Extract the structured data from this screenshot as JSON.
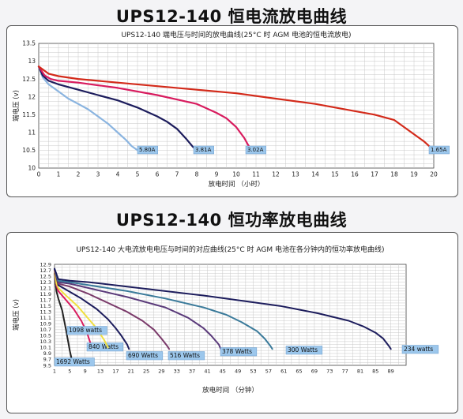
{
  "chart_data": [
    {
      "type": "line",
      "heading": "UPS12-140 恒电流放电曲线",
      "title": "UPS12-140 端电压与时间的放电曲线(25°C 时 AGM 电池的恒电流放电)",
      "xlabel": "放电时间 （小时）",
      "ylabel": "端电压 (v)",
      "xlim": [
        0,
        20
      ],
      "ylim": [
        10,
        13.5
      ],
      "x_ticks": [
        "0",
        "1",
        "2",
        "3",
        "4",
        "5",
        "6",
        "7",
        "8",
        "9",
        "10",
        "11",
        "12",
        "13",
        "14",
        "15",
        "16",
        "17",
        "18",
        "19",
        "20"
      ],
      "y_ticks": [
        "10",
        "10.5",
        "11",
        "11.5",
        "12",
        "12.5",
        "13",
        "13.5"
      ],
      "grid": true,
      "series": [
        {
          "name": "5.80A",
          "color": "#8ab4e0",
          "x": [
            0,
            0.2,
            0.5,
            1,
            1.5,
            2,
            2.5,
            3,
            3.5,
            4,
            4.4,
            4.7,
            5.0
          ],
          "y": [
            12.85,
            12.55,
            12.35,
            12.15,
            11.95,
            11.8,
            11.65,
            11.45,
            11.25,
            11.0,
            10.8,
            10.62,
            10.5
          ]
        },
        {
          "name": "3.81A",
          "color": "#1c1c5c",
          "x": [
            0,
            0.2,
            0.5,
            1,
            2,
            3,
            4,
            5,
            6,
            6.5,
            7,
            7.5,
            7.8,
            8.0
          ],
          "y": [
            12.85,
            12.6,
            12.45,
            12.35,
            12.2,
            12.05,
            11.9,
            11.7,
            11.45,
            11.3,
            11.1,
            10.8,
            10.6,
            10.5
          ]
        },
        {
          "name": "3.02A",
          "color": "#d81b5e",
          "x": [
            0,
            0.3,
            0.6,
            1,
            2,
            4,
            6,
            8,
            9,
            9.5,
            10,
            10.4,
            10.6,
            10.8
          ],
          "y": [
            12.85,
            12.6,
            12.5,
            12.45,
            12.4,
            12.25,
            12.05,
            11.8,
            11.55,
            11.4,
            11.15,
            10.85,
            10.65,
            10.5
          ]
        },
        {
          "name": "1.65A",
          "color": "#d32a1a",
          "x": [
            0,
            0.5,
            1,
            2,
            4,
            6,
            8,
            10,
            12,
            14,
            16,
            17,
            18,
            18.5,
            19,
            19.5,
            19.8,
            20.0
          ],
          "y": [
            12.85,
            12.65,
            12.58,
            12.5,
            12.4,
            12.3,
            12.2,
            12.1,
            11.95,
            11.8,
            11.6,
            11.5,
            11.35,
            11.15,
            10.95,
            10.75,
            10.6,
            10.5
          ]
        }
      ]
    },
    {
      "type": "line",
      "heading": "UPS12-140 恒功率放电曲线",
      "title": "UPS12-140 大电流放电电压与时间的对应曲线(25°C 时 AGM 电池在各分钟内的恒功率放电曲线)",
      "xlabel": "放电时间 （分钟）",
      "ylabel": "端电压 (v)",
      "xlim": [
        1,
        93
      ],
      "ylim": [
        9.5,
        12.9
      ],
      "x_ticks": [
        "1",
        "5",
        "9",
        "13",
        "17",
        "21",
        "25",
        "29",
        "33",
        "37",
        "41",
        "45",
        "49",
        "53",
        "57",
        "61",
        "65",
        "69",
        "73",
        "77",
        "81",
        "85",
        "89"
      ],
      "y_ticks": [
        "9.5",
        "9.7",
        "9.9",
        "10.1",
        "10.3",
        "10.5",
        "10.7",
        "10.9",
        "11.1",
        "11.3",
        "11.5",
        "11.7",
        "11.9",
        "12.1",
        "12.3",
        "12.5",
        "12.7",
        "12.9"
      ],
      "grid": true,
      "series": [
        {
          "name": "1692 Watts",
          "color": "#222222",
          "x": [
            1,
            1.5,
            2,
            3,
            4,
            5,
            5.5
          ],
          "y": [
            12.6,
            12.0,
            11.75,
            11.35,
            10.7,
            10.0,
            9.7
          ]
        },
        {
          "name": "840 Watts",
          "color": "#d81b5e",
          "x": [
            1,
            1.5,
            2,
            4,
            6,
            8,
            9.5,
            10.5,
            11
          ],
          "y": [
            12.7,
            12.2,
            12.0,
            11.7,
            11.4,
            11.0,
            10.6,
            10.2,
            10.0
          ]
        },
        {
          "name": "1098 watts",
          "color": "#f0e040",
          "x": [
            1,
            1.5,
            2,
            4,
            7,
            10,
            12,
            14,
            15
          ],
          "y": [
            12.75,
            12.25,
            12.1,
            11.85,
            11.5,
            11.05,
            10.75,
            10.35,
            10.1
          ]
        },
        {
          "name": "690 Watts",
          "color": "#1c1c5c",
          "x": [
            1,
            2,
            4,
            8,
            12,
            15,
            17,
            18.5,
            20,
            20.5
          ],
          "y": [
            12.75,
            12.2,
            12.05,
            11.75,
            11.4,
            11.05,
            10.75,
            10.5,
            10.2,
            10.05
          ]
        },
        {
          "name": "516 Watts",
          "color": "#7a3a6a",
          "x": [
            1,
            2,
            5,
            10,
            15,
            20,
            24,
            27,
            29,
            30.5,
            31
          ],
          "y": [
            12.75,
            12.25,
            12.15,
            11.9,
            11.6,
            11.3,
            11.0,
            10.7,
            10.4,
            10.15,
            10.05
          ]
        },
        {
          "name": "378 Watts",
          "color": "#5a3a7a",
          "x": [
            1,
            2,
            5,
            10,
            20,
            30,
            36,
            40,
            42,
            44,
            44.5
          ],
          "y": [
            12.75,
            12.3,
            12.25,
            12.1,
            11.8,
            11.45,
            11.1,
            10.75,
            10.5,
            10.2,
            10.05
          ]
        },
        {
          "name": "300 Watts",
          "color": "#3a7a9a",
          "x": [
            1,
            2,
            5,
            10,
            20,
            30,
            40,
            46,
            50,
            54,
            56,
            57.5,
            58
          ],
          "y": [
            12.75,
            12.35,
            12.3,
            12.2,
            12.0,
            11.75,
            11.45,
            11.2,
            10.95,
            10.65,
            10.4,
            10.15,
            10.05
          ]
        },
        {
          "name": "234 watts",
          "color": "#1c1c5c",
          "x": [
            1,
            2,
            5,
            10,
            20,
            40,
            60,
            70,
            78,
            82,
            85,
            87,
            88.5,
            89
          ],
          "y": [
            12.75,
            12.4,
            12.35,
            12.3,
            12.15,
            11.85,
            11.5,
            11.25,
            11.0,
            10.8,
            10.6,
            10.4,
            10.15,
            10.05
          ]
        }
      ]
    }
  ]
}
